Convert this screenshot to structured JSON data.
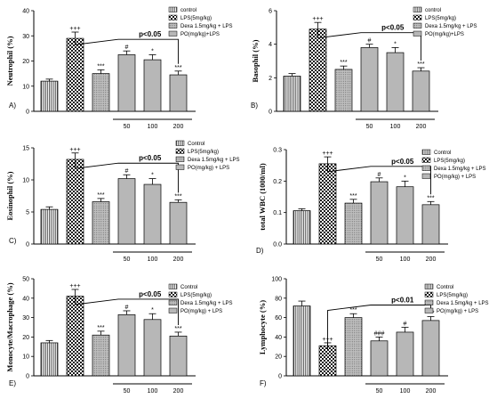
{
  "legend_labels": {
    "A": [
      "control",
      "LPS(5mg/kg)",
      "Dexa 1.5mg/kg + LPS",
      "PO(mg/kg)+LPS"
    ],
    "B": [
      "control",
      "LPS(5mg/kg)",
      "Dexa 1.5mg/kg + LPS",
      "PO(mg/kg)+LPS"
    ],
    "C": [
      "Control",
      "LPS(5mg/kg)",
      "Dexa 1.5mg/kg + LPS",
      "PO(mg/kg) + LPS"
    ],
    "D": [
      "Control",
      "LPS(5mg/kg)",
      "Dexa 1.5mg/kg + LPS",
      "PO(mg/kg) + LPS"
    ],
    "E": [
      "Control",
      "LPS(5mg/kg)",
      "Dexa 1.5mg/kg + LPS",
      "PO(mg/kg) + LPS"
    ],
    "F": [
      "Control",
      "LPS(5mg/kg)",
      "Dexa 1.5mg/kg + LPS",
      "PO(mg/kg) + LPS"
    ]
  },
  "chart_data": [
    {
      "type": "bar",
      "panel": "A)",
      "ylabel": "Neutrophil (%)",
      "ylim": [
        0,
        40
      ],
      "yticks": [
        "0",
        "10",
        "20",
        "30",
        "40"
      ],
      "categories": [
        "",
        "",
        "",
        "50",
        "100",
        "200"
      ],
      "values": [
        12,
        29,
        15,
        22.5,
        20.5,
        14.5
      ],
      "errors": [
        0.8,
        2.5,
        1.5,
        1.5,
        2.0,
        1.5
      ],
      "sig": [
        "",
        "+++",
        "***",
        "#",
        "*",
        "***"
      ],
      "bracket": "p<0.05"
    },
    {
      "type": "bar",
      "panel": "B)",
      "ylabel": "Basophil (%)",
      "ylim": [
        0,
        6
      ],
      "yticks": [
        "0",
        "2",
        "4",
        "6"
      ],
      "categories": [
        "",
        "",
        "",
        "50",
        "100",
        "200"
      ],
      "values": [
        2.1,
        4.9,
        2.5,
        3.8,
        3.5,
        2.4
      ],
      "errors": [
        0.15,
        0.4,
        0.2,
        0.2,
        0.3,
        0.2
      ],
      "sig": [
        "",
        "+++",
        "***",
        "#",
        "*",
        "***"
      ],
      "bracket": "p<0.05"
    },
    {
      "type": "bar",
      "panel": "C)",
      "ylabel": "Eosinophil (%)",
      "ylim": [
        0,
        15
      ],
      "yticks": [
        "0",
        "5",
        "10",
        "15"
      ],
      "categories": [
        "",
        "",
        "",
        "50",
        "100",
        "200"
      ],
      "values": [
        5.4,
        13.2,
        6.6,
        10.2,
        9.3,
        6.5
      ],
      "errors": [
        0.4,
        1.0,
        0.5,
        0.6,
        0.9,
        0.4
      ],
      "sig": [
        "",
        "+++",
        "***",
        "#",
        "*",
        "***"
      ],
      "bracket": "p<0.05"
    },
    {
      "type": "bar",
      "panel": "D)",
      "ylabel": "total WBC (1000/ml)",
      "ylim": [
        0,
        0.3
      ],
      "yticks": [
        "0.0",
        "0.1",
        "0.2",
        "0.3"
      ],
      "categories": [
        "",
        "",
        "",
        "50",
        "100",
        "200"
      ],
      "values": [
        0.106,
        0.255,
        0.13,
        0.198,
        0.182,
        0.125
      ],
      "errors": [
        0.006,
        0.022,
        0.012,
        0.012,
        0.018,
        0.01
      ],
      "sig": [
        "",
        "+++",
        "***",
        "#",
        "*",
        "***"
      ],
      "bracket": "p<0.05"
    },
    {
      "type": "bar",
      "panel": "E)",
      "ylabel": "Monocyte/Macrophage (%)",
      "ylim": [
        0,
        50
      ],
      "yticks": [
        "0",
        "10",
        "20",
        "30",
        "40",
        "50"
      ],
      "categories": [
        "",
        "",
        "",
        "50",
        "100",
        "200"
      ],
      "values": [
        17,
        41,
        21,
        31.5,
        29,
        20.5
      ],
      "errors": [
        1.2,
        3.5,
        2.0,
        2.0,
        3.0,
        2.0
      ],
      "sig": [
        "",
        "+++",
        "***",
        "#",
        "*",
        "***"
      ],
      "bracket": "p<0.05"
    },
    {
      "type": "bar",
      "panel": "F)",
      "ylabel": "Lymphocyte (%)",
      "ylim": [
        0,
        100
      ],
      "yticks": [
        "0",
        "20",
        "40",
        "60",
        "80",
        "100"
      ],
      "categories": [
        "",
        "",
        "",
        "50",
        "100",
        "200"
      ],
      "values": [
        72,
        31,
        60,
        36,
        45,
        57
      ],
      "errors": [
        5,
        3,
        4,
        4,
        5,
        4
      ],
      "sig": [
        "",
        "+++",
        "***",
        "###",
        "#",
        "***"
      ],
      "bracket": "p<0.01"
    }
  ]
}
